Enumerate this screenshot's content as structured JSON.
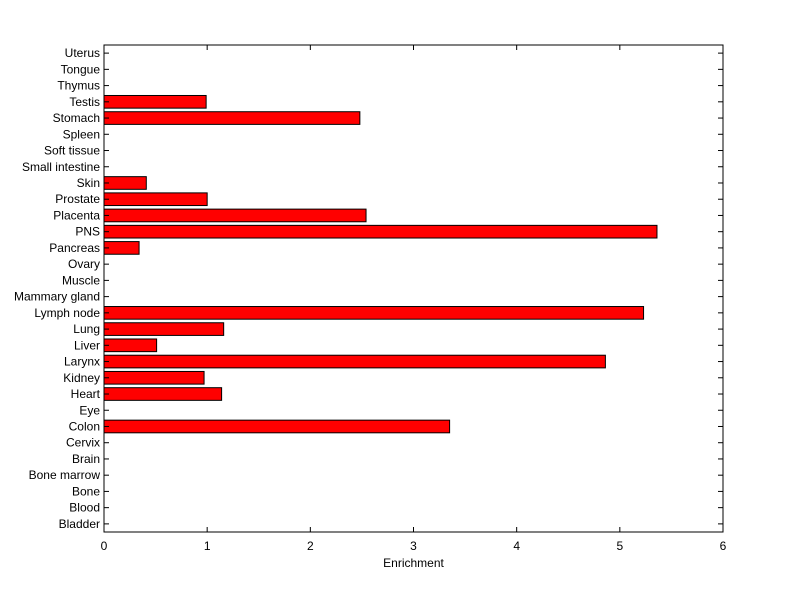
{
  "chart_data": {
    "type": "bar",
    "orientation": "horizontal",
    "title": "",
    "xlabel": "Enrichment",
    "ylabel": "",
    "xlim": [
      0,
      6
    ],
    "xticks": [
      0,
      1,
      2,
      3,
      4,
      5,
      6
    ],
    "grid": false,
    "bar_color": "#ff0000",
    "bar_edge_color": "#000000",
    "categories": [
      "Bladder",
      "Blood",
      "Bone",
      "Bone marrow",
      "Brain",
      "Cervix",
      "Colon",
      "Eye",
      "Heart",
      "Kidney",
      "Larynx",
      "Liver",
      "Lung",
      "Lymph node",
      "Mammary gland",
      "Muscle",
      "Ovary",
      "Pancreas",
      "PNS",
      "Placenta",
      "Prostate",
      "Skin",
      "Small intestine",
      "Soft tissue",
      "Spleen",
      "Stomach",
      "Testis",
      "Thymus",
      "Tongue",
      "Uterus"
    ],
    "values": [
      0,
      0,
      0,
      0,
      0,
      0,
      3.35,
      0,
      1.14,
      0.97,
      4.86,
      0.51,
      1.16,
      5.23,
      0,
      0,
      0,
      0.34,
      5.36,
      2.54,
      1.0,
      0.41,
      0,
      0,
      0,
      2.48,
      0.99,
      0,
      0,
      0
    ]
  }
}
